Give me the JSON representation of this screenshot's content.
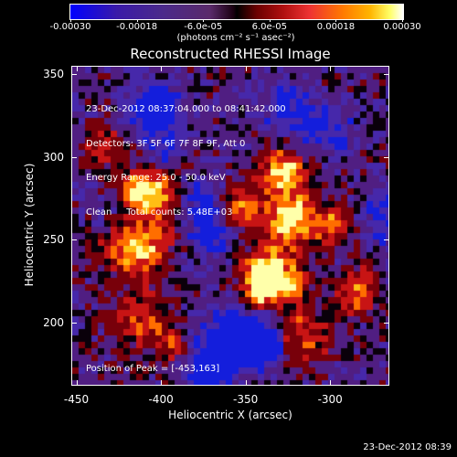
{
  "colorbar": {
    "tick_labels": [
      "-0.00030",
      "-0.00018",
      "-6.0e-05",
      "6.0e-05",
      "0.00018",
      "0.00030"
    ],
    "units": "(photons cm⁻² s⁻¹ asec⁻²)",
    "range": [
      -0.0003,
      0.0003
    ]
  },
  "title": "Reconstructed RHESSI Image",
  "info_lines": [
    "23-Dec-2012 08:37:04.000 to 08:41:42.000",
    "Detectors: 3F 5F 6F 7F 8F 9F, Att 0",
    "Energy Range: 25.0 - 50.0 keV",
    "Clean     Total counts: 5.48E+03"
  ],
  "peak_text": "Position of Peak = [-453,163]",
  "x_axis": {
    "label": "Heliocentric X (arcsec)",
    "ticks": [
      "-450",
      "-400",
      "-350",
      "-300"
    ],
    "range": [
      -453,
      -265
    ]
  },
  "y_axis": {
    "label": "Heliocentric Y (arcsec)",
    "ticks": [
      "200",
      "250",
      "300",
      "350"
    ],
    "range": [
      162,
      355
    ]
  },
  "footer_timestamp": "23-Dec-2012 08:39",
  "colors": {
    "background": "#000000",
    "foreground": "#ffffff"
  }
}
